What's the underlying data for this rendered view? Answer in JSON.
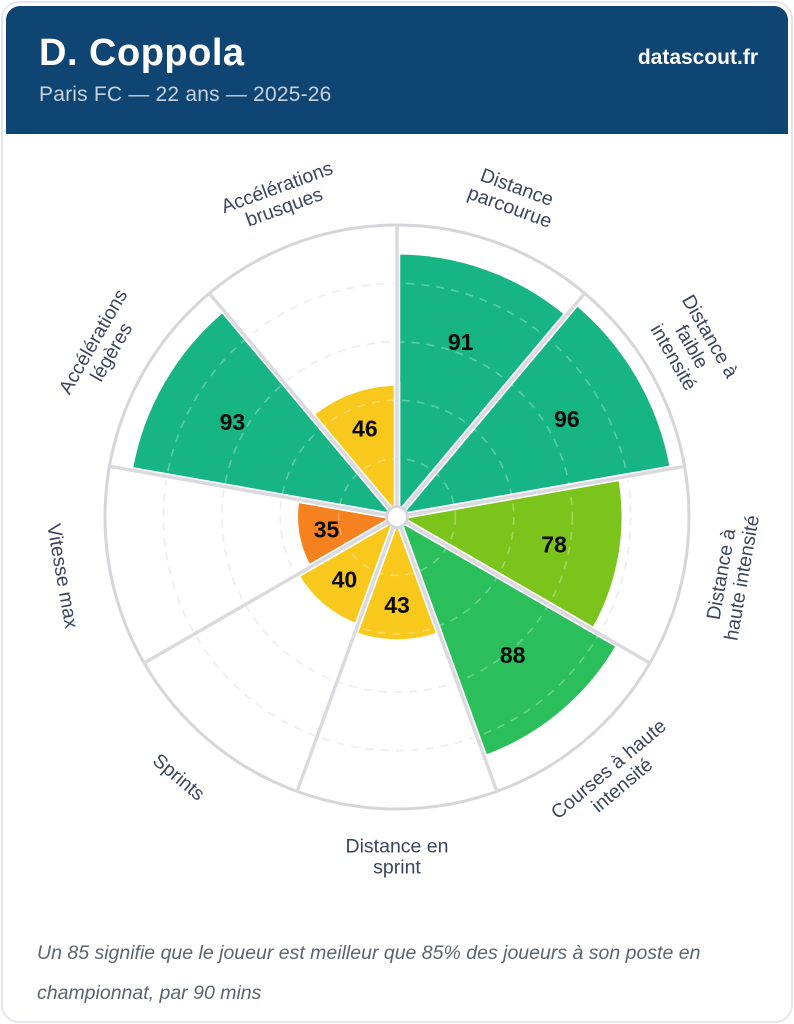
{
  "header": {
    "player_name": "D. Coppola",
    "subtitle": "Paris FC — 22 ans — 2025-26",
    "brand": "datascout.fr"
  },
  "footer": {
    "note": "Un 85 signifie que le joueur est meilleur que 85% des joueurs à son poste en championnat, par 90 mins"
  },
  "theme": {
    "header_bg": "#0F4572",
    "subtitle_color": "#C7D2DE",
    "category_label_color": "#3A4660",
    "value_label_color": "#0A0A0A",
    "footer_color": "#5A6472",
    "outer_ring_color": "#D5D5DA",
    "spoke_color": "#D9D9DE",
    "dashed_ring_color": "#E5E5E9",
    "slice_border_color": "#FFFFFF",
    "center_dot_fill": "#FFFFFF",
    "center_dot_stroke": "#D6D6DA",
    "card_border": "#E5E5EC"
  },
  "chart_data": {
    "type": "pizza",
    "title": "",
    "max": 100,
    "rings_pct": [
      20,
      40,
      60,
      80
    ],
    "slice_angle_deg": 40,
    "start_angle_deg": 0,
    "legend_position": "none",
    "grid": "dashed-circles",
    "categories": [
      "Distance parcourue",
      "Distance à faible intensité",
      "Distance à haute intensité",
      "Courses à haute intensité",
      "Distance en sprint",
      "Sprints",
      "Vitesse max",
      "Accélérations légères",
      "Accélérations brusques"
    ],
    "category_lines": [
      [
        "Distance",
        "parcourue"
      ],
      [
        "Distance à",
        "faible",
        "intensité"
      ],
      [
        "Distance à",
        "haute intensité"
      ],
      [
        "Courses à haute",
        "intensité"
      ],
      [
        "Distance en",
        "sprint"
      ],
      [
        "Sprints"
      ],
      [
        "Vitesse max"
      ],
      [
        "Accélérations",
        "légères"
      ],
      [
        "Accélérations",
        "brusques"
      ]
    ],
    "values": [
      91,
      96,
      78,
      88,
      43,
      40,
      35,
      93,
      46
    ],
    "slice_colors": [
      "#17B583",
      "#17B583",
      "#7AC41C",
      "#2ABF5A",
      "#F8C81D",
      "#F8C81D",
      "#F5821F",
      "#17B583",
      "#F8C81D"
    ]
  }
}
